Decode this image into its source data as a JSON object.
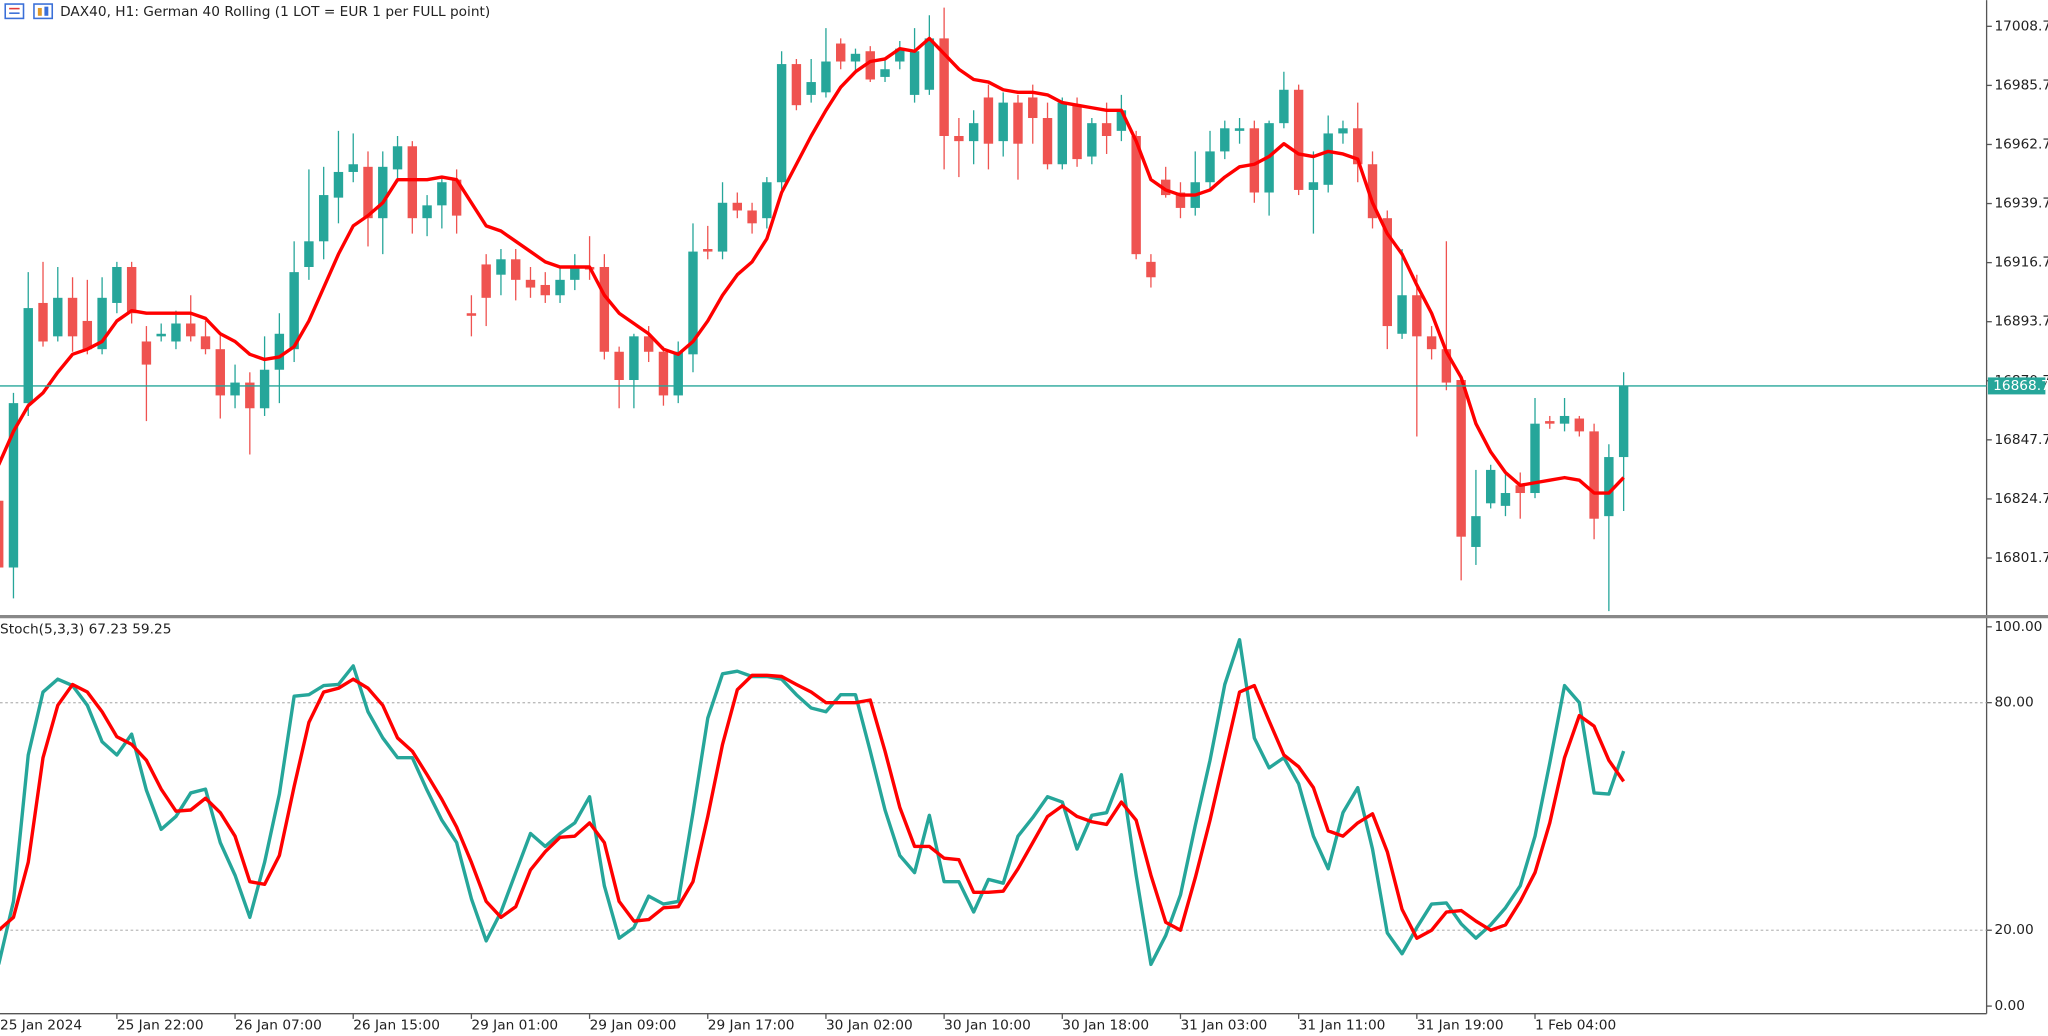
{
  "chart_data": [
    {
      "type": "candlestick",
      "title": "DAX40, H1:  German 40 Rolling (1 LOT = EUR 1 per FULL point)",
      "categories": [
        "25 Jan 2024",
        null,
        null,
        null,
        null,
        null,
        null,
        null,
        "25 Jan 22:00",
        null,
        null,
        null,
        null,
        null,
        null,
        null,
        "26 Jan 07:00",
        null,
        null,
        null,
        null,
        null,
        null,
        null,
        "26 Jan 15:00",
        null,
        null,
        null,
        null,
        null,
        null,
        null,
        "29 Jan 01:00",
        null,
        null,
        null,
        null,
        null,
        null,
        null,
        "29 Jan 09:00",
        null,
        null,
        null,
        null,
        null,
        null,
        null,
        "29 Jan 17:00",
        null,
        null,
        null,
        null,
        null,
        null,
        null,
        "30 Jan 02:00",
        null,
        null,
        null,
        null,
        null,
        null,
        null,
        "30 Jan 10:00",
        null,
        null,
        null,
        null,
        null,
        null,
        null,
        "30 Jan 18:00",
        null,
        null,
        null,
        null,
        null,
        null,
        null,
        "31 Jan 03:00",
        null,
        null,
        null,
        null,
        null,
        null,
        null,
        "31 Jan 11:00",
        null,
        null,
        null,
        null,
        null,
        null,
        null,
        "31 Jan 19:00",
        null,
        null,
        null,
        null,
        null,
        null,
        null,
        "1 Feb 04:00",
        null,
        null,
        null,
        null,
        null,
        null
      ],
      "open": [
        16824,
        16798,
        16862,
        16901,
        16888,
        16903,
        16894,
        16883,
        16901,
        16915,
        16886,
        16888,
        16886,
        16893,
        16888,
        16883,
        16865,
        16870,
        16860,
        16875,
        16883,
        16915,
        16925,
        16942,
        16952,
        16954,
        16934,
        16953,
        16962,
        16934,
        16939,
        16949,
        16897,
        16916,
        16912,
        16918,
        16910,
        16908,
        16904,
        16910,
        16915,
        16915,
        16882,
        16871,
        16888,
        16882,
        16865,
        16881,
        16922,
        16921,
        16940,
        16937,
        16934,
        16948,
        16994,
        16982,
        16983,
        17002,
        16995,
        16999,
        16989,
        16995,
        16982,
        16984,
        17004,
        16966,
        16964,
        16981,
        16964,
        16979,
        16981,
        16973,
        16955,
        16978,
        16958,
        16971,
        16968,
        16966,
        16917,
        16949,
        16944,
        16938,
        16948,
        16960,
        16968,
        16969,
        16944,
        16971,
        16984,
        16945,
        16947,
        16967,
        16969,
        16955,
        16934,
        16889,
        16904,
        16888,
        16883,
        16871,
        16806,
        16823,
        16822,
        16830,
        16827,
        16855,
        16854,
        16856,
        16851,
        16818,
        16841
      ],
      "high": [
        16828,
        16866,
        16913,
        16917,
        16915,
        16911,
        16910,
        16911,
        16917,
        16917,
        16892,
        16893,
        16898,
        16904,
        16894,
        16889,
        16877,
        16874,
        16888,
        16897,
        16925,
        16953,
        16954,
        16968,
        16967,
        16960,
        16960,
        16966,
        16964,
        16943,
        16950,
        16953,
        16904,
        16920,
        16922,
        16922,
        16915,
        16913,
        16915,
        16920,
        16927,
        16920,
        16884,
        16889,
        16892,
        16884,
        16886,
        16932,
        16931,
        16948,
        16944,
        16940,
        16950,
        16999,
        16996,
        16996,
        17008,
        17004,
        17000,
        17001,
        16996,
        17003,
        17008,
        17013,
        17016,
        16973,
        16976,
        16986,
        16983,
        16982,
        16986,
        16979,
        16981,
        16981,
        16973,
        16979,
        16982,
        16968,
        16920,
        16954,
        16948,
        16960,
        16968,
        16972,
        16973,
        16972,
        16972,
        16991,
        16986,
        16960,
        16974,
        16972,
        16979,
        16960,
        16937,
        16922,
        16912,
        16892,
        16925,
        16872,
        16836,
        16838,
        16835,
        16835,
        16864,
        16857,
        16864,
        16857,
        16854,
        16846,
        16874
      ],
      "low": [
        16795,
        16786,
        16857,
        16884,
        16886,
        16882,
        16881,
        16881,
        16897,
        16893,
        16855,
        16886,
        16883,
        16886,
        16881,
        16856,
        16860,
        16842,
        16857,
        16862,
        16878,
        16910,
        16918,
        16932,
        16948,
        16923,
        16920,
        16948,
        16928,
        16927,
        16930,
        16928,
        16888,
        16892,
        16904,
        16902,
        16903,
        16901,
        16901,
        16906,
        16910,
        16879,
        16860,
        16860,
        16878,
        16861,
        16862,
        16874,
        16918,
        16918,
        16934,
        16928,
        16930,
        16945,
        16976,
        16979,
        16981,
        16992,
        16991,
        16987,
        16987,
        16992,
        16979,
        16982,
        16953,
        16950,
        16955,
        16953,
        16958,
        16949,
        16963,
        16953,
        16953,
        16954,
        16955,
        16959,
        16964,
        16918,
        16907,
        16942,
        16934,
        16935,
        16945,
        16957,
        16963,
        16940,
        16935,
        16969,
        16943,
        16928,
        16944,
        16963,
        16948,
        16930,
        16883,
        16887,
        16849,
        16879,
        16867,
        16793,
        16799,
        16821,
        16818,
        16817,
        16825,
        16852,
        16851,
        16849,
        16809,
        16781,
        16820
      ],
      "close": [
        16798,
        16862,
        16899,
        16886,
        16903,
        16888,
        16883,
        16903,
        16915,
        16897,
        16877,
        16889,
        16893,
        16888,
        16883,
        16865,
        16870,
        16860,
        16875,
        16889,
        16913,
        16925,
        16943,
        16952,
        16955,
        16934,
        16954,
        16962,
        16934,
        16939,
        16948,
        16935,
        16896,
        16903,
        16918,
        16910,
        16907,
        16904,
        16910,
        16915,
        16914,
        16882,
        16871,
        16888,
        16882,
        16865,
        16882,
        16921,
        16921,
        16940,
        16937,
        16932,
        16948,
        16994,
        16978,
        16987,
        16995,
        16995,
        16998,
        16988,
        16992,
        17000,
        16999,
        17004,
        16966,
        16964,
        16971,
        16963,
        16979,
        16963,
        16973,
        16955,
        16979,
        16957,
        16971,
        16966,
        16976,
        16920,
        16911,
        16943,
        16938,
        16948,
        16960,
        16969,
        16969,
        16944,
        16971,
        16984,
        16945,
        16948,
        16967,
        16969,
        16955,
        16934,
        16892,
        16904,
        16888,
        16883,
        16870,
        16810,
        16818,
        16836,
        16827,
        16827,
        16854,
        16854,
        16857,
        16851,
        16817,
        16841,
        16868.7
      ],
      "up_color": "#26a69a",
      "down_color": "#ef5350",
      "ma": {
        "color": "#ff0000",
        "values": [
          16838,
          16851,
          16861,
          16866,
          16874,
          16881,
          16883,
          16886,
          16894,
          16898,
          16897,
          16897,
          16897,
          16897,
          16895,
          16889,
          16886,
          16881,
          16879,
          16880,
          16884,
          16894,
          16907,
          16920,
          16931,
          16935,
          16940,
          16949,
          16949,
          16949,
          16950,
          16949,
          16940,
          16931,
          16929,
          16925,
          16921,
          16917,
          16915,
          16915,
          16915,
          16904,
          16897,
          16893,
          16889,
          16883,
          16881,
          16886,
          16894,
          16904,
          16912,
          16917,
          16926,
          16944,
          16955,
          16966,
          16976,
          16985,
          16991,
          16995,
          16996,
          17000,
          16999,
          17004,
          16998,
          16992,
          16988,
          16987,
          16984,
          16983,
          16983,
          16982,
          16979,
          16978,
          16977,
          16976,
          16976,
          16964,
          16949,
          16945,
          16943,
          16943,
          16945,
          16950,
          16954,
          16955,
          16958,
          16963,
          16959,
          16958,
          16960,
          16959,
          16957,
          16940,
          16928,
          16920,
          16908,
          16897,
          16882,
          16872,
          16854,
          16843,
          16835,
          16830,
          16831,
          16832,
          16833,
          16832,
          16827,
          16827,
          16833
        ]
      },
      "current_price": 16868.7,
      "current_price_color": "#26a69a",
      "ylim": [
        16779.9,
        17018.9
      ],
      "yticks": [
        17008.7,
        16985.7,
        16962.7,
        16939.7,
        16916.7,
        16893.7,
        16870.7,
        16847.7,
        16824.7,
        16801.7
      ]
    },
    {
      "type": "line",
      "title": "Stoch(5,3,3)",
      "series": [
        {
          "color": "#26a69a",
          "values": [
            11.0,
            27.6,
            66.2,
            82.8,
            86.2,
            84.5,
            79.3,
            69.7,
            66.2,
            71.7,
            56.9,
            46.6,
            50.0,
            56.2,
            57.2,
            43.1,
            34.5,
            23.4,
            37.9,
            55.9,
            81.7,
            82.1,
            84.5,
            84.8,
            89.7,
            77.6,
            70.7,
            65.5,
            65.5,
            56.9,
            49.0,
            43.1,
            28.3,
            17.2,
            24.8,
            35.2,
            45.5,
            42.1,
            45.5,
            48.3,
            55.2,
            31.7,
            17.9,
            20.7,
            29.0,
            26.9,
            27.6,
            51.0,
            75.9,
            87.6,
            88.3,
            86.9,
            86.9,
            86.2,
            82.1,
            78.6,
            77.6,
            82.1,
            82.1,
            67.2,
            51.7,
            39.7,
            35.2,
            50.3,
            32.8,
            32.8,
            24.8,
            33.4,
            32.4,
            44.8,
            49.7,
            55.2,
            53.8,
            41.4,
            50.3,
            51.0,
            61.0,
            34.5,
            11.0,
            18.6,
            29.3,
            47.6,
            64.8,
            84.8,
            96.6,
            70.7,
            62.8,
            65.5,
            58.6,
            44.8,
            36.2,
            51.0,
            57.6,
            41.4,
            19.3,
            13.8,
            20.7,
            26.9,
            27.2,
            21.7,
            17.9,
            21.4,
            25.9,
            31.7,
            44.8,
            64.1,
            84.5,
            80.0,
            56.2,
            55.9,
            67.23
          ]
        },
        {
          "color": "#ff0000",
          "values": [
            20.0,
            23.4,
            37.9,
            65.5,
            79.3,
            84.8,
            82.8,
            77.6,
            71.0,
            69.0,
            64.8,
            57.2,
            51.4,
            51.7,
            54.8,
            51.0,
            44.8,
            32.8,
            32.1,
            39.7,
            57.9,
            74.8,
            82.8,
            83.8,
            86.2,
            83.8,
            79.3,
            70.7,
            67.2,
            61.0,
            54.5,
            47.2,
            37.9,
            27.6,
            23.4,
            26.2,
            35.9,
            40.7,
            44.5,
            44.8,
            48.3,
            43.1,
            27.6,
            22.4,
            22.8,
            25.9,
            26.2,
            32.8,
            50.0,
            69.0,
            83.4,
            87.2,
            87.2,
            86.9,
            84.8,
            82.8,
            80.0,
            80.0,
            80.0,
            80.7,
            67.2,
            52.4,
            42.1,
            42.1,
            39.0,
            38.6,
            30.0,
            30.0,
            30.3,
            36.2,
            43.1,
            50.0,
            52.8,
            50.0,
            48.6,
            47.9,
            53.8,
            49.0,
            34.5,
            22.1,
            20.0,
            33.8,
            49.0,
            65.9,
            82.8,
            84.5,
            75.2,
            66.2,
            63.1,
            57.6,
            46.2,
            44.8,
            48.3,
            50.7,
            40.7,
            25.5,
            17.9,
            20.0,
            24.8,
            25.2,
            22.4,
            20.0,
            21.4,
            27.6,
            35.2,
            48.3,
            65.5,
            76.6,
            73.8,
            64.8,
            59.25
          ]
        }
      ],
      "levels": [
        80,
        20
      ],
      "ylim": [
        -2,
        102
      ],
      "yticks": [
        {
          "value": 100,
          "label": "100.00"
        },
        {
          "value": 80,
          "label": "80.00"
        },
        {
          "value": 20,
          "label": "20.00"
        },
        {
          "value": 0,
          "label": "0.00"
        }
      ]
    }
  ]
}
